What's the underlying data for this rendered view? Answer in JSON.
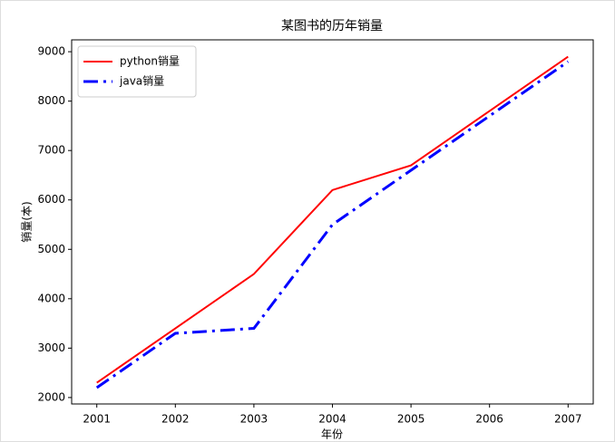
{
  "chart_data": {
    "type": "line",
    "title": "某图书的历年销量",
    "x_label": "年份",
    "y_label": "销量(本)",
    "x": [
      2001,
      2002,
      2003,
      2004,
      2005,
      2006,
      2007
    ],
    "series": [
      {
        "name": "python销量",
        "color": "#ff0000",
        "style": "solid",
        "values": [
          2300,
          3400,
          4500,
          6200,
          6700,
          7800,
          8900
        ]
      },
      {
        "name": "java销量",
        "color": "#0000ff",
        "style": "dashdot",
        "values": [
          2200,
          3300,
          3400,
          5500,
          6600,
          7700,
          8800
        ]
      }
    ],
    "xlim": [
      2000.68,
      2007.32
    ],
    "xticks": [
      2001,
      2002,
      2003,
      2004,
      2005,
      2006,
      2007
    ],
    "ylim": [
      1870,
      9240
    ],
    "yticks": [
      2000,
      3000,
      4000,
      5000,
      6000,
      7000,
      8000,
      9000
    ],
    "grid": false,
    "legend": "upper left"
  }
}
